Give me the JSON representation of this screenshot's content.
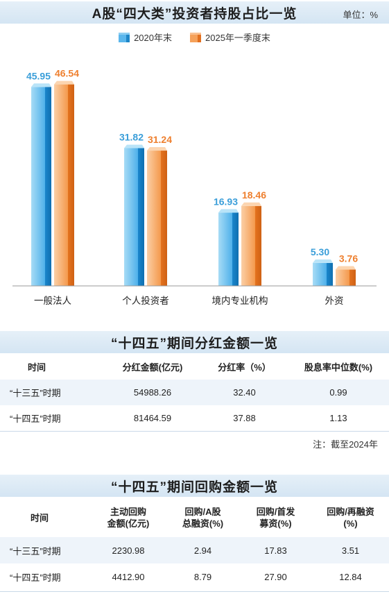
{
  "title": "A股“四大类”投资者持股占比一览",
  "unit": "单位：%",
  "colors": {
    "series_2020": "#3a9ed9",
    "series_2025": "#ee7f2e",
    "band": "#d8e7f4"
  },
  "chart_data": {
    "type": "bar",
    "categories": [
      "一般法人",
      "个人投资者",
      "境内专业机构",
      "外资"
    ],
    "series": [
      {
        "name": "2020年末",
        "values": [
          45.95,
          31.82,
          16.93,
          5.3
        ],
        "labels": [
          "45.95",
          "31.82",
          "16.93",
          "5.30"
        ]
      },
      {
        "name": "2025年一季度末",
        "values": [
          46.54,
          31.24,
          18.46,
          3.76
        ],
        "labels": [
          "46.54",
          "31.24",
          "18.46",
          "3.76"
        ]
      }
    ],
    "ylim": [
      0,
      50
    ]
  },
  "dividends": {
    "title": "“十四五”期间分红金额一览",
    "headers": [
      "时间",
      "分红金额(亿元)",
      "分红率（%）",
      "股息率中位数(%)"
    ],
    "rows": [
      [
        "“十三五”时期",
        "54988.26",
        "32.40",
        "0.99"
      ],
      [
        "“十四五”时期",
        "81464.59",
        "37.88",
        "1.13"
      ]
    ],
    "note": "注：截至2024年"
  },
  "buybacks": {
    "title": "“十四五”期间回购金额一览",
    "headers": [
      [
        "时间"
      ],
      [
        "主动回购",
        "金额(亿元)"
      ],
      [
        "回购/A股",
        "总融资(%)"
      ],
      [
        "回购/首发",
        "募资(%)"
      ],
      [
        "回购/再融资",
        "(%)"
      ]
    ],
    "rows": [
      [
        "“十三五”时期",
        "2230.98",
        "2.94",
        "17.83",
        "3.51"
      ],
      [
        "“十四五”时期",
        "4412.90",
        "8.79",
        "27.90",
        "12.84"
      ]
    ]
  }
}
